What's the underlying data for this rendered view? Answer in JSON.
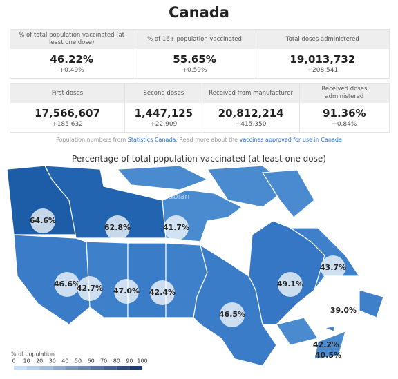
{
  "header": {
    "title": "Canada"
  },
  "stats_row1": [
    {
      "label": "% of total population vaccinated (at least one dose)",
      "value": "46.22%",
      "change": "+0.49%"
    },
    {
      "label": "% of 16+ population vaccinated",
      "value": "55.65%",
      "change": "+0.59%"
    },
    {
      "label": "Total doses administered",
      "value": "19,013,732",
      "change": "+208,541"
    }
  ],
  "stats_row2": [
    {
      "label": "First doses",
      "value": "17,566,607",
      "change": "+185,632"
    },
    {
      "label": "Second doses",
      "value": "1,447,125",
      "change": "+22,909"
    },
    {
      "label": "Received from manufacturer",
      "value": "20,812,214",
      "change": "+415,350"
    },
    {
      "label": "Received doses administered",
      "value": "91.36%",
      "change": "−0.84%"
    }
  ],
  "note": {
    "parts": [
      "Population numbers from ",
      "Statistics Canada",
      ". Read more about the ",
      "vaccines approved for use in Canada"
    ]
  },
  "map": {
    "title": "Percentage of total population vaccinated (at least one dose)",
    "watermark": "Hinabian",
    "regions": [
      {
        "label": "64.6%"
      },
      {
        "label": "62.8%"
      },
      {
        "label": "41.7%"
      },
      {
        "label": "46.6%"
      },
      {
        "label": "42.7%"
      },
      {
        "label": "47.0%"
      },
      {
        "label": "42.4%"
      },
      {
        "label": "46.5%"
      },
      {
        "label": "49.1%"
      },
      {
        "label": "43.7%"
      },
      {
        "label": "39.0%"
      },
      {
        "label": "42.2%"
      },
      {
        "label": "40.5%"
      }
    ],
    "legend": {
      "title": "% of population",
      "ticks": [
        0,
        10,
        20,
        30,
        40,
        50,
        60,
        70,
        80,
        90,
        100
      ]
    }
  }
}
